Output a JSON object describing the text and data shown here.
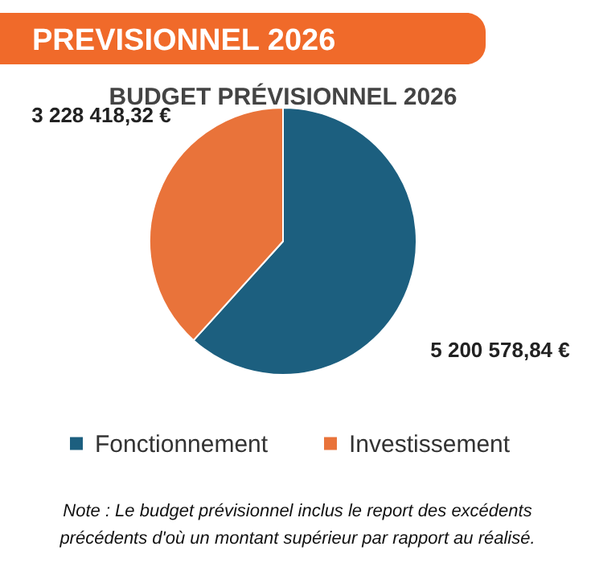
{
  "chart_data": {
    "type": "pie",
    "title": "PREVISIONNEL 2026",
    "subtitle": "BUDGET PRÉVISIONNEL 2026",
    "categories": [
      "Fonctionnement",
      "Investissement"
    ],
    "values": [
      5200578.84,
      3228418.32
    ],
    "value_labels": [
      "5 200 578,84 €",
      "3 228 418,32 €"
    ],
    "colors": [
      "#1c5f7f",
      "#e9733a"
    ],
    "legend": "bottom",
    "annotations": [
      "Note : Le budget prévisionnel inclus le report des excédents précédents d'où un montant supérieur par rapport au réalisé."
    ]
  }
}
